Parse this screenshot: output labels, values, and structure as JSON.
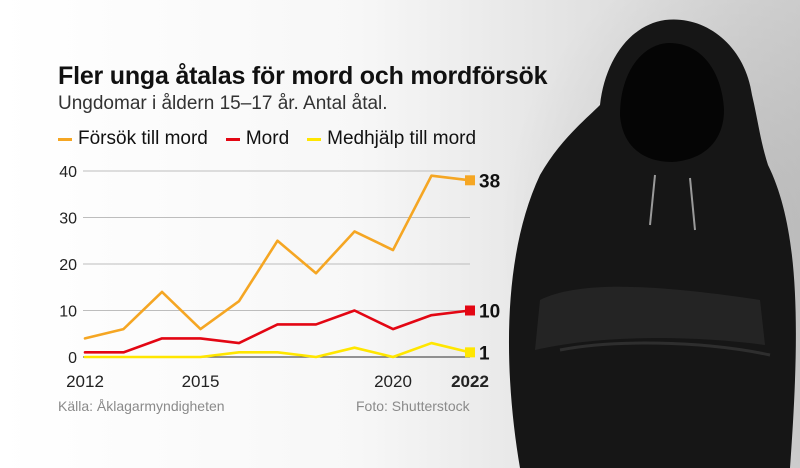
{
  "title": "Fler unga åtalas för mord och mordförsök",
  "subtitle": "Ungdomar i åldern 15–17 år. Antal åtal.",
  "source": "Källa: Åklagarmyndigheten",
  "photo_credit": "Foto: Shutterstock",
  "chart_data": {
    "type": "line",
    "x": [
      2012,
      2013,
      2014,
      2015,
      2016,
      2017,
      2018,
      2019,
      2020,
      2021,
      2022
    ],
    "xticks": [
      "2012",
      "2015",
      "2020",
      "2022"
    ],
    "yticks": [
      "0",
      "10",
      "20",
      "30",
      "40"
    ],
    "ylim": [
      0,
      40
    ],
    "grid": true,
    "legend_position": "top",
    "series": [
      {
        "name": "Försök till mord",
        "color": "#f5a623",
        "values": [
          4,
          6,
          14,
          6,
          12,
          25,
          18,
          27,
          23,
          39,
          38
        ],
        "end_label": "38"
      },
      {
        "name": "Mord",
        "color": "#e30613",
        "values": [
          1,
          1,
          4,
          4,
          3,
          7,
          7,
          10,
          6,
          9,
          10
        ],
        "end_label": "10"
      },
      {
        "name": "Medhjälp till mord",
        "color": "#ffe600",
        "values": [
          0,
          0,
          0,
          0,
          1,
          1,
          0,
          2,
          0,
          3,
          1
        ],
        "end_label": "1"
      }
    ]
  }
}
